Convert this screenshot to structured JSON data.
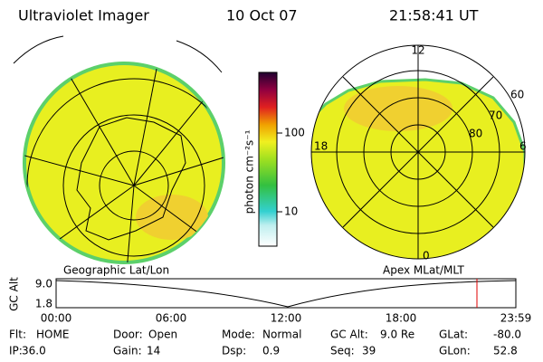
{
  "header": {
    "title": "Ultraviolet Imager",
    "date": "10 Oct 07",
    "time": "21:58:41 UT"
  },
  "colorbar": {
    "label": "photon cm⁻²s⁻¹",
    "ticks": [
      "100",
      "10"
    ]
  },
  "left_map": {
    "caption": "Geographic Lat/Lon"
  },
  "right_map": {
    "caption": "Apex MLat/MLT",
    "mlt_labels": [
      "12",
      "18",
      "6",
      "0"
    ],
    "lat_labels": [
      "60",
      "70",
      "80"
    ]
  },
  "altitude_plot": {
    "ylabel": "GC Alt",
    "yticks": [
      "9.0",
      "1.8"
    ],
    "xticks": [
      "00:00",
      "06:00",
      "12:00",
      "18:00",
      "23:59"
    ]
  },
  "footer": [
    {
      "label": "Flt:",
      "value": "HOME"
    },
    {
      "label": "IP:",
      "value": "36.0"
    },
    {
      "label": "Door:",
      "value": "Open"
    },
    {
      "label": "Gain:",
      "value": "14"
    },
    {
      "label": "Mode:",
      "value": "Normal"
    },
    {
      "label": "Dsp:",
      "value": "0.9"
    },
    {
      "label": "GC Alt:",
      "value": "9.0 Re"
    },
    {
      "label": "Seq:",
      "value": "39"
    },
    {
      "label": "GLat:",
      "value": "-80.0"
    },
    {
      "label": "GLon:",
      "value": "52.8"
    }
  ]
}
